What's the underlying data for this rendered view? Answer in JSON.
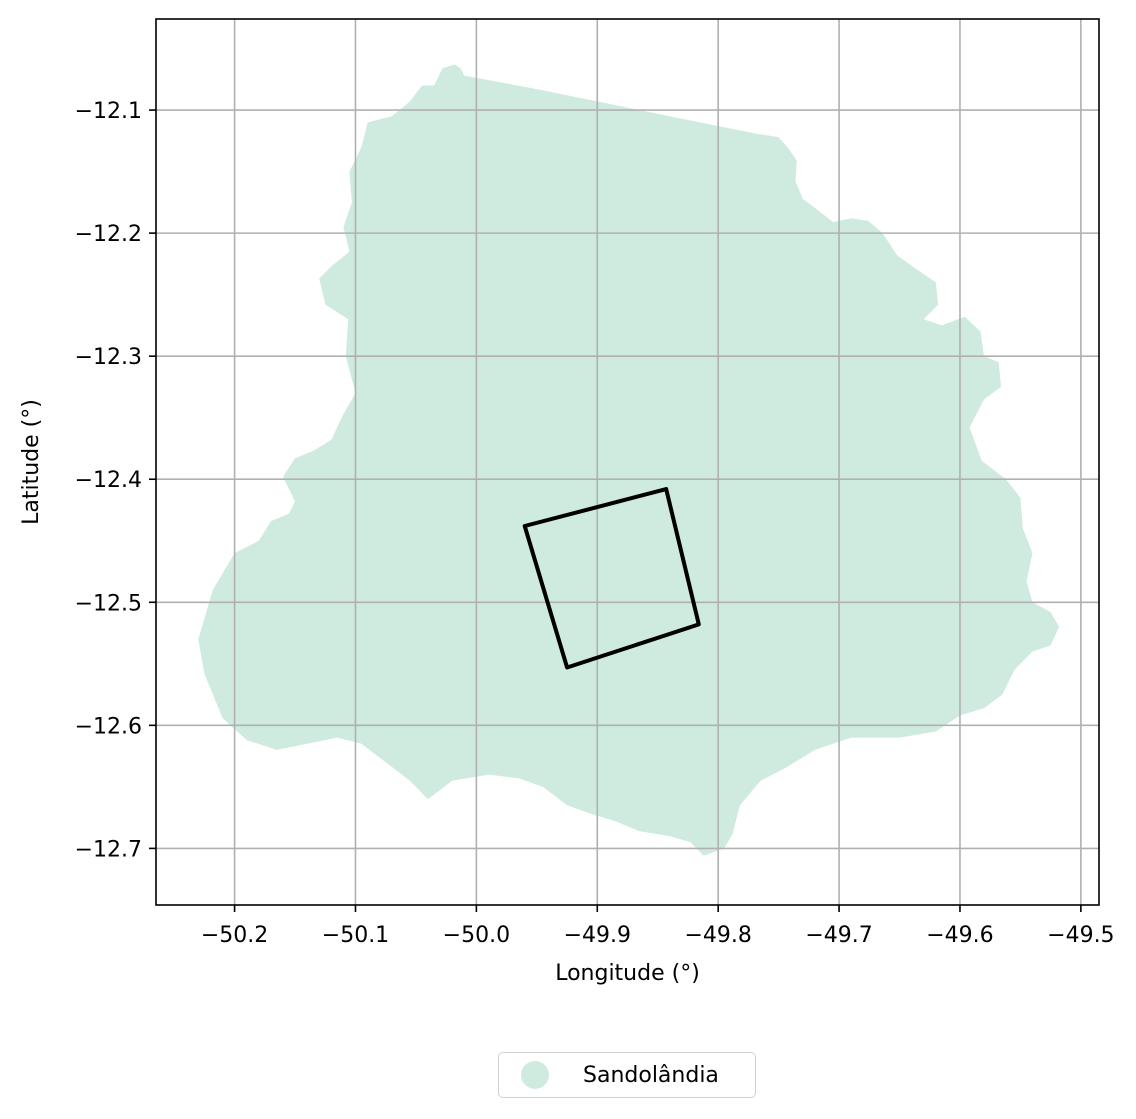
{
  "chart_data": {
    "type": "map",
    "xlabel": "Longitude (°)",
    "ylabel": "Latitude (°)",
    "xlim": [
      -50.265,
      -49.485
    ],
    "ylim": [
      -12.746,
      -12.026
    ],
    "grid": true,
    "x_ticks": [
      -50.2,
      -50.1,
      -50.0,
      -49.9,
      -49.8,
      -49.7,
      -49.6,
      -49.5
    ],
    "y_ticks": [
      -12.1,
      -12.2,
      -12.3,
      -12.4,
      -12.5,
      -12.6,
      -12.7
    ],
    "x_tick_labels": [
      "−50.2",
      "−50.1",
      "−50.0",
      "−49.9",
      "−49.8",
      "−49.7",
      "−49.6",
      "−49.5"
    ],
    "y_tick_labels": [
      "−12.1",
      "−12.2",
      "−12.3",
      "−12.4",
      "−12.5",
      "−12.6",
      "−12.7"
    ],
    "region": {
      "name": "Sandolândia",
      "color": "#cfebdf",
      "boundary": [
        [
          -50.018,
          -12.063
        ],
        [
          -50.013,
          -12.066
        ],
        [
          -50.01,
          -12.072
        ],
        [
          -49.95,
          -12.083
        ],
        [
          -49.89,
          -12.095
        ],
        [
          -49.83,
          -12.107
        ],
        [
          -49.77,
          -12.119
        ],
        [
          -49.75,
          -12.122
        ],
        [
          -49.742,
          -12.131
        ],
        [
          -49.735,
          -12.141
        ],
        [
          -49.736,
          -12.158
        ],
        [
          -49.73,
          -12.172
        ],
        [
          -49.718,
          -12.181
        ],
        [
          -49.705,
          -12.191
        ],
        [
          -49.69,
          -12.188
        ],
        [
          -49.676,
          -12.19
        ],
        [
          -49.664,
          -12.2
        ],
        [
          -49.652,
          -12.218
        ],
        [
          -49.635,
          -12.23
        ],
        [
          -49.62,
          -12.24
        ],
        [
          -49.618,
          -12.258
        ],
        [
          -49.63,
          -12.27
        ],
        [
          -49.615,
          -12.275
        ],
        [
          -49.596,
          -12.268
        ],
        [
          -49.583,
          -12.28
        ],
        [
          -49.58,
          -12.3
        ],
        [
          -49.568,
          -12.305
        ],
        [
          -49.566,
          -12.325
        ],
        [
          -49.58,
          -12.335
        ],
        [
          -49.592,
          -12.358
        ],
        [
          -49.582,
          -12.385
        ],
        [
          -49.562,
          -12.4
        ],
        [
          -49.55,
          -12.415
        ],
        [
          -49.548,
          -12.44
        ],
        [
          -49.54,
          -12.46
        ],
        [
          -49.545,
          -12.483
        ],
        [
          -49.54,
          -12.5
        ],
        [
          -49.525,
          -12.508
        ],
        [
          -49.518,
          -12.52
        ],
        [
          -49.525,
          -12.535
        ],
        [
          -49.54,
          -12.54
        ],
        [
          -49.555,
          -12.555
        ],
        [
          -49.565,
          -12.575
        ],
        [
          -49.58,
          -12.586
        ],
        [
          -49.6,
          -12.592
        ],
        [
          -49.62,
          -12.605
        ],
        [
          -49.65,
          -12.61
        ],
        [
          -49.69,
          -12.61
        ],
        [
          -49.72,
          -12.62
        ],
        [
          -49.745,
          -12.635
        ],
        [
          -49.765,
          -12.645
        ],
        [
          -49.782,
          -12.665
        ],
        [
          -49.788,
          -12.688
        ],
        [
          -49.795,
          -12.7
        ],
        [
          -49.812,
          -12.706
        ],
        [
          -49.823,
          -12.695
        ],
        [
          -49.84,
          -12.69
        ],
        [
          -49.865,
          -12.686
        ],
        [
          -49.885,
          -12.678
        ],
        [
          -49.905,
          -12.672
        ],
        [
          -49.925,
          -12.665
        ],
        [
          -49.945,
          -12.65
        ],
        [
          -49.965,
          -12.643
        ],
        [
          -49.99,
          -12.64
        ],
        [
          -50.02,
          -12.645
        ],
        [
          -50.04,
          -12.66
        ],
        [
          -50.055,
          -12.645
        ],
        [
          -50.075,
          -12.63
        ],
        [
          -50.095,
          -12.615
        ],
        [
          -50.115,
          -12.61
        ],
        [
          -50.14,
          -12.615
        ],
        [
          -50.165,
          -12.62
        ],
        [
          -50.19,
          -12.612
        ],
        [
          -50.21,
          -12.594
        ],
        [
          -50.225,
          -12.558
        ],
        [
          -50.23,
          -12.53
        ],
        [
          -50.218,
          -12.49
        ],
        [
          -50.2,
          -12.46
        ],
        [
          -50.18,
          -12.45
        ],
        [
          -50.17,
          -12.434
        ],
        [
          -50.155,
          -12.428
        ],
        [
          -50.15,
          -12.418
        ],
        [
          -50.16,
          -12.398
        ],
        [
          -50.15,
          -12.383
        ],
        [
          -50.135,
          -12.377
        ],
        [
          -50.12,
          -12.368
        ],
        [
          -50.11,
          -12.347
        ],
        [
          -50.1,
          -12.33
        ],
        [
          -50.108,
          -12.3
        ],
        [
          -50.106,
          -12.27
        ],
        [
          -50.125,
          -12.258
        ],
        [
          -50.13,
          -12.237
        ],
        [
          -50.12,
          -12.227
        ],
        [
          -50.105,
          -12.215
        ],
        [
          -50.11,
          -12.195
        ],
        [
          -50.103,
          -12.175
        ],
        [
          -50.105,
          -12.15
        ],
        [
          -50.095,
          -12.13
        ],
        [
          -50.09,
          -12.11
        ],
        [
          -50.07,
          -12.105
        ],
        [
          -50.055,
          -12.093
        ],
        [
          -50.045,
          -12.08
        ],
        [
          -50.035,
          -12.08
        ],
        [
          -50.028,
          -12.066
        ]
      ]
    },
    "shapes": [
      {
        "type": "polygon",
        "color": "#000000",
        "points": [
          [
            -49.96,
            -12.438
          ],
          [
            -49.843,
            -12.408
          ],
          [
            -49.816,
            -12.518
          ],
          [
            -49.925,
            -12.553
          ]
        ]
      }
    ],
    "legend": {
      "position": "bottom-center",
      "entries": [
        {
          "label": "Sandolândia",
          "color": "#cfebdf"
        }
      ]
    }
  }
}
